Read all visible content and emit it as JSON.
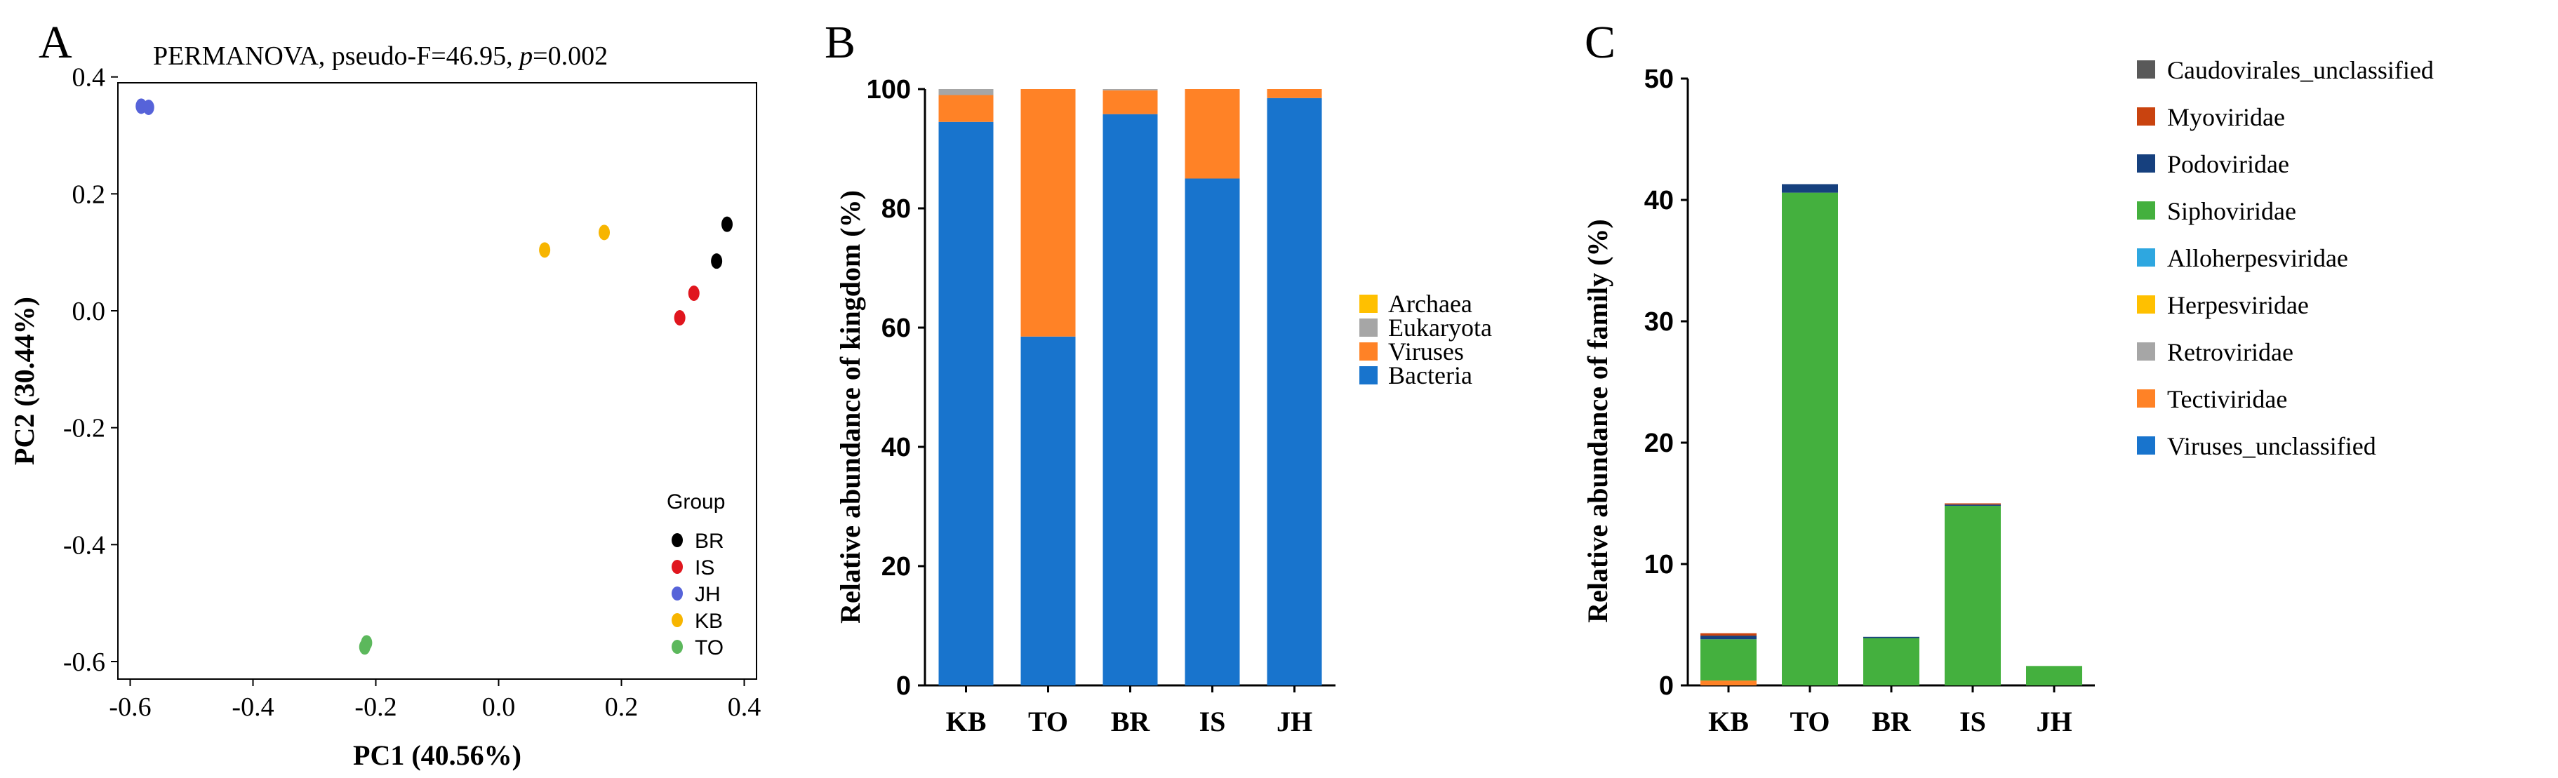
{
  "panels": {
    "a": {
      "letter": "A",
      "title_main": "PERMANOVA, pseudo-F=46.95, ",
      "title_p": "p",
      "title_rest": "=0.002"
    },
    "b": {
      "letter": "B"
    },
    "c": {
      "letter": "C"
    }
  },
  "chart_data": [
    {
      "type": "scatter",
      "xlabel": "PC1 (40.56%)",
      "ylabel": "PC2 (30.44%)",
      "xlim": [
        -0.62,
        0.42
      ],
      "ylim": [
        -0.63,
        0.39
      ],
      "xticks": [
        -0.6,
        -0.4,
        -0.2,
        0.0,
        0.2,
        0.4
      ],
      "xtick_labels": [
        "-0.6",
        "-0.4",
        "-0.2",
        "0.0",
        "0.2",
        "0.4"
      ],
      "yticks": [
        0.4,
        0.2,
        0.0,
        -0.2,
        -0.4,
        -0.6
      ],
      "ytick_labels": [
        "0.4",
        "0.2",
        "0.0",
        "-0.2",
        "-0.4",
        "-0.6"
      ],
      "grid": false,
      "legend": {
        "title": "Group",
        "placement": "bottom-right"
      },
      "series": [
        {
          "name": "BR",
          "color": "#000000",
          "points": [
            [
              0.355,
              0.085
            ],
            [
              0.372,
              0.148
            ]
          ]
        },
        {
          "name": "IS",
          "color": "#e0161e",
          "points": [
            [
              0.295,
              -0.012
            ],
            [
              0.318,
              0.03
            ]
          ]
        },
        {
          "name": "JH",
          "color": "#5663d9",
          "points": [
            [
              -0.582,
              0.35
            ],
            [
              -0.57,
              0.348
            ]
          ]
        },
        {
          "name": "KB",
          "color": "#f7b500",
          "points": [
            [
              0.075,
              0.104
            ],
            [
              0.172,
              0.134
            ]
          ]
        },
        {
          "name": "TO",
          "color": "#5cb85c",
          "points": [
            [
              -0.218,
              -0.575
            ],
            [
              -0.215,
              -0.568
            ]
          ]
        }
      ]
    },
    {
      "type": "bar",
      "stacked": true,
      "ylabel": "Relative abundance of kingdom (%)",
      "ylim": [
        0,
        100
      ],
      "yticks": [
        0,
        20,
        40,
        60,
        80,
        100
      ],
      "categories": [
        "KB",
        "TO",
        "BR",
        "IS",
        "JH"
      ],
      "legend": {
        "placement": "right"
      },
      "series": [
        {
          "name": "Bacteria",
          "color": "#1874cd",
          "values": [
            94.5,
            58.5,
            95.8,
            85.0,
            98.5
          ]
        },
        {
          "name": "Viruses",
          "color": "#ff8226",
          "values": [
            4.5,
            41.5,
            4.0,
            15.0,
            1.5
          ]
        },
        {
          "name": "Eukaryota",
          "color": "#a6a6a6",
          "values": [
            1.0,
            0.0,
            0.2,
            0.0,
            0.0
          ]
        },
        {
          "name": "Archaea",
          "color": "#ffc000",
          "values": [
            0.0,
            0.0,
            0.0,
            0.0,
            0.0
          ]
        }
      ]
    },
    {
      "type": "bar",
      "stacked": true,
      "ylabel": "Relative abundance of family (%)",
      "ylim": [
        0,
        50
      ],
      "yticks": [
        0,
        10,
        20,
        30,
        40,
        50
      ],
      "categories": [
        "KB",
        "TO",
        "BR",
        "IS",
        "JH"
      ],
      "legend": {
        "placement": "right"
      },
      "series": [
        {
          "name": "Viruses_unclassified",
          "color": "#1874cd",
          "values": [
            0.0,
            0.0,
            0.0,
            0.0,
            0.0
          ]
        },
        {
          "name": "Tectiviridae",
          "color": "#ff8226",
          "values": [
            0.4,
            0.0,
            0.0,
            0.0,
            0.0
          ]
        },
        {
          "name": "Retroviridae",
          "color": "#a6a6a6",
          "values": [
            0.0,
            0.0,
            0.0,
            0.0,
            0.0
          ]
        },
        {
          "name": "Herpesviridae",
          "color": "#ffc000",
          "values": [
            0.0,
            0.0,
            0.0,
            0.0,
            0.0
          ]
        },
        {
          "name": "Alloherpesviridae",
          "color": "#2ea7e0",
          "values": [
            0.0,
            0.0,
            0.0,
            0.0,
            0.0
          ]
        },
        {
          "name": "Siphoviridae",
          "color": "#44b03e",
          "values": [
            3.4,
            40.6,
            3.9,
            14.8,
            1.6
          ]
        },
        {
          "name": "Podoviridae",
          "color": "#16407e",
          "values": [
            0.3,
            0.7,
            0.1,
            0.1,
            0.0
          ]
        },
        {
          "name": "Myoviridae",
          "color": "#c9430f",
          "values": [
            0.2,
            0.0,
            0.0,
            0.1,
            0.0
          ]
        },
        {
          "name": "Caudovirales_unclassified",
          "color": "#595959",
          "values": [
            0.0,
            0.0,
            0.0,
            0.0,
            0.0
          ]
        }
      ],
      "legend_order": [
        "Caudovirales_unclassified",
        "Myoviridae",
        "Podoviridae",
        "Siphoviridae",
        "Alloherpesviridae",
        "Herpesviridae",
        "Retroviridae",
        "Tectiviridae",
        "Viruses_unclassified"
      ]
    }
  ]
}
